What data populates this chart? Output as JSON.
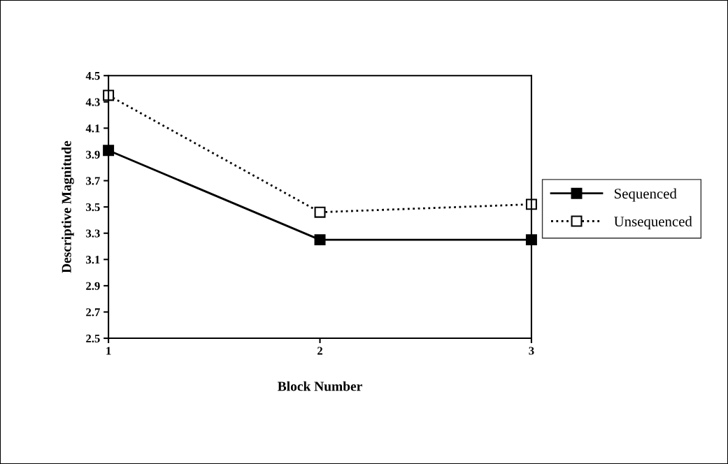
{
  "chart_data": {
    "type": "line",
    "xlabel": "Block Number",
    "ylabel": "Descriptive Magnitude",
    "x": [
      1,
      2,
      3
    ],
    "series": [
      {
        "name": "Sequenced",
        "color": "#000000",
        "values": [
          3.93,
          3.25,
          3.25
        ],
        "line_style": "solid"
      },
      {
        "name": "Unsequenced",
        "color": "#000000",
        "values": [
          4.35,
          3.46,
          3.52
        ],
        "line_style": "dotted"
      }
    ],
    "xlim": [
      1,
      3
    ],
    "xticks": [
      1,
      2,
      3
    ],
    "ylim": [
      2.5,
      4.5
    ],
    "yticks": [
      2.5,
      2.7,
      2.9,
      3.1,
      3.3,
      3.5,
      3.7,
      3.9,
      4.1,
      4.3,
      4.5
    ],
    "grid": false,
    "legend": "right",
    "marker": "square"
  }
}
